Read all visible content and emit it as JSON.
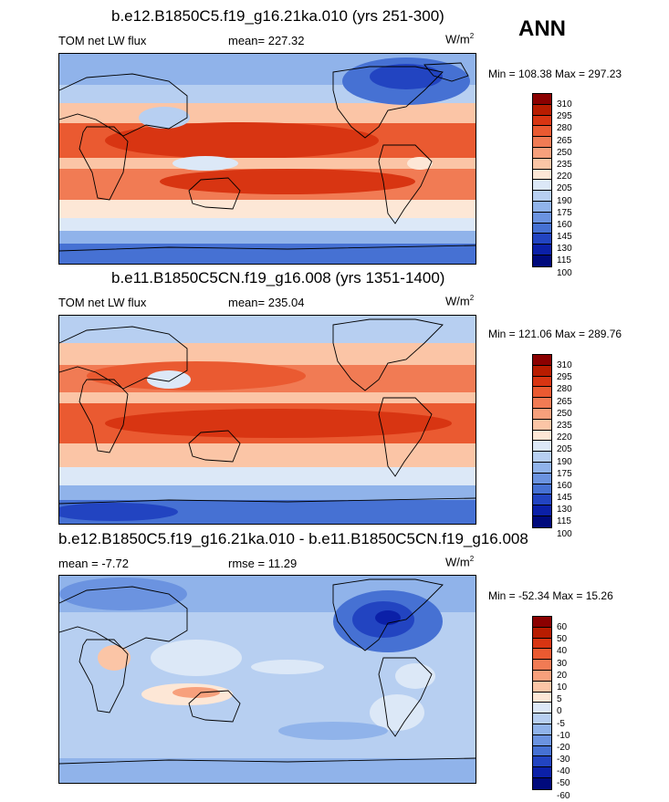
{
  "season": "ANN",
  "panels": [
    {
      "title": "b.e12.B1850C5.f19_g16.21ka.010 (yrs 251-300)",
      "variable": "TOM net LW flux",
      "stat_left": "",
      "stat_mid": "mean= 227.32",
      "units": "W/m",
      "units_sup": "2",
      "minmax": "Min = 108.38 Max = 297.23",
      "colorbar_levels": [
        "310",
        "295",
        "280",
        "265",
        "250",
        "235",
        "220",
        "205",
        "190",
        "175",
        "160",
        "145",
        "130",
        "115",
        "100"
      ],
      "colorbar_colors": [
        "#8b0000",
        "#b81c00",
        "#d83512",
        "#ea5a31",
        "#f17b54",
        "#f7a07c",
        "#fbc5a6",
        "#fde7d6",
        "#dce8f7",
        "#b7cff1",
        "#90b3ea",
        "#6b93e0",
        "#4671d3",
        "#2244c1",
        "#0b20a8",
        "#000a7c"
      ]
    },
    {
      "title": "b.e11.B1850C5CN.f19_g16.008 (yrs 1351-1400)",
      "variable": "TOM net LW flux",
      "stat_left": "",
      "stat_mid": "mean= 235.04",
      "units": "W/m",
      "units_sup": "2",
      "minmax": "Min = 121.06 Max = 289.76",
      "colorbar_levels": [
        "310",
        "295",
        "280",
        "265",
        "250",
        "235",
        "220",
        "205",
        "190",
        "175",
        "160",
        "145",
        "130",
        "115",
        "100"
      ],
      "colorbar_colors": [
        "#8b0000",
        "#b81c00",
        "#d83512",
        "#ea5a31",
        "#f17b54",
        "#f7a07c",
        "#fbc5a6",
        "#fde7d6",
        "#dce8f7",
        "#b7cff1",
        "#90b3ea",
        "#6b93e0",
        "#4671d3",
        "#2244c1",
        "#0b20a8",
        "#000a7c"
      ]
    },
    {
      "title": "b.e12.B1850C5.f19_g16.21ka.010 - b.e11.B1850C5CN.f19_g16.008",
      "variable": "",
      "stat_left": "mean =  -7.72",
      "stat_mid": "rmse =  11.29",
      "units": "W/m",
      "units_sup": "2",
      "minmax": "Min = -52.34 Max =  15.26",
      "colorbar_levels": [
        "60",
        "50",
        "40",
        "30",
        "20",
        "10",
        "5",
        "0",
        "-5",
        "-10",
        "-20",
        "-30",
        "-40",
        "-50",
        "-60"
      ],
      "colorbar_colors": [
        "#8b0000",
        "#b81c00",
        "#d83512",
        "#ea5a31",
        "#f17b54",
        "#f7a07c",
        "#fbc5a6",
        "#fde7d6",
        "#dce8f7",
        "#b7cff1",
        "#90b3ea",
        "#6b93e0",
        "#4671d3",
        "#2244c1",
        "#0b20a8",
        "#000a7c"
      ]
    }
  ]
}
